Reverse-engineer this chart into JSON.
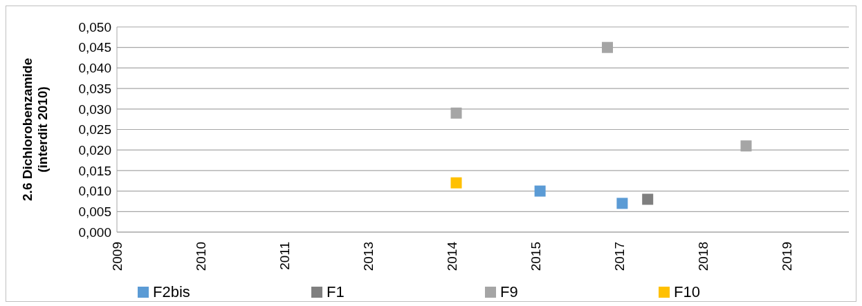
{
  "chart_data": {
    "type": "scatter",
    "ylabel": "2.6 Dichlorobenzamide (interdit 2010)",
    "xlim": [
      "2009-05-27",
      "2020-07-01"
    ],
    "xticks": [
      {
        "value": "2009-05-27",
        "label": "2009"
      },
      {
        "value": "2010-09-03",
        "label": "2010"
      },
      {
        "value": "2011-12-11",
        "label": "2011"
      },
      {
        "value": "2013-03-19",
        "label": "2013"
      },
      {
        "value": "2014-06-26",
        "label": "2014"
      },
      {
        "value": "2015-10-03",
        "label": "2015"
      },
      {
        "value": "2017-01-09",
        "label": "2017"
      },
      {
        "value": "2018-04-18",
        "label": "2018"
      },
      {
        "value": "2019-07-26",
        "label": "2019"
      }
    ],
    "ylim": [
      0,
      0.05
    ],
    "yticks": [
      {
        "value": 0,
        "label": "0,000"
      },
      {
        "value": 0.005,
        "label": "0,005"
      },
      {
        "value": 0.01,
        "label": "0,010"
      },
      {
        "value": 0.015,
        "label": "0,015"
      },
      {
        "value": 0.02,
        "label": "0,020"
      },
      {
        "value": 0.025,
        "label": "0,025"
      },
      {
        "value": 0.03,
        "label": "0,030"
      },
      {
        "value": 0.035,
        "label": "0,035"
      },
      {
        "value": 0.04,
        "label": "0,040"
      },
      {
        "value": 0.045,
        "label": "0,045"
      },
      {
        "value": 0.05,
        "label": "0,050"
      }
    ],
    "grid": "y",
    "legend": "bottom",
    "marker": "square",
    "series": [
      {
        "name": "F2bis",
        "color": "#5b9bd5",
        "x": [
          "2015-10-26",
          "2017-01-23"
        ],
        "values": [
          0.01,
          0.007
        ]
      },
      {
        "name": "F1",
        "color": "#7f7f7f",
        "x": [
          "2017-06-13"
        ],
        "values": [
          0.008
        ]
      },
      {
        "name": "F9",
        "color": "#a5a5a5",
        "x": [
          "2014-07-19",
          "2016-11-02",
          "2018-12-10"
        ],
        "values": [
          0.029,
          0.045,
          0.021
        ]
      },
      {
        "name": "F10",
        "color": "#ffc000",
        "x": [
          "2014-07-19"
        ],
        "values": [
          0.012
        ]
      }
    ]
  }
}
